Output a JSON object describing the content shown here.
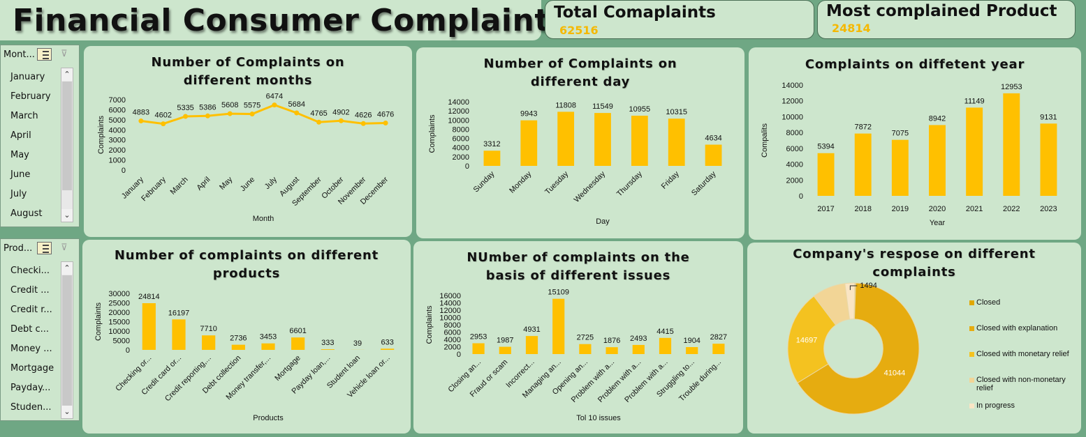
{
  "dashboard": {
    "title": "Financial Consumer Complaints",
    "kpi_total_label": "Total Comaplaints",
    "kpi_total_value": "62516",
    "kpi_product_label": "Most complained Product",
    "kpi_product_value": "24814"
  },
  "colors": {
    "background": "#6fa784",
    "panel": "#cde6cd",
    "bar": "#ffc000",
    "line": "#ffc000",
    "kpi_value": "#f5b800",
    "donut": [
      "#e0a800",
      "#e6ac10",
      "#f4c220",
      "#f2d596",
      "#fae5c4"
    ]
  },
  "slicers": {
    "month": {
      "header": "Mont...",
      "items": [
        "January",
        "February",
        "March",
        "April",
        "May",
        "June",
        "July",
        "August"
      ],
      "icons": [
        "multi-select-icon",
        "clear-filter-icon"
      ]
    },
    "product": {
      "header": "Prod...",
      "items": [
        "Checki...",
        "Credit ...",
        "Credit r...",
        "Debt c...",
        "Money ...",
        "Mortgage",
        "Payday...",
        "Studen..."
      ],
      "icons": [
        "multi-select-icon",
        "clear-filter-icon"
      ]
    }
  },
  "charts": {
    "months": {
      "title": "Number of Complaints on different months",
      "chart_data": {
        "type": "line",
        "title": "Number of Complaints on different months",
        "categories": [
          "January",
          "February",
          "March",
          "April",
          "May",
          "June",
          "July",
          "August",
          "September",
          "October",
          "November",
          "December"
        ],
        "values": [
          4883,
          4602,
          5335,
          5386,
          5608,
          5575,
          6474,
          5684,
          4765,
          4902,
          4626,
          4676
        ],
        "xlabel": "Month",
        "ylabel": "Complaints",
        "ylim": [
          0,
          7000
        ],
        "yticks": [
          "0",
          "1000",
          "2000",
          "3000",
          "4000",
          "5000",
          "6000",
          "7000"
        ],
        "grid": false
      }
    },
    "days": {
      "title": "Number of Complaints on different day",
      "chart_data": {
        "type": "bar",
        "title": "Number of Complaints on different day",
        "categories": [
          "Sunday",
          "Monday",
          "Tuesday",
          "Wednesday",
          "Thursday",
          "Friday",
          "Saturday"
        ],
        "values": [
          3312,
          9943,
          11808,
          11549,
          10955,
          10315,
          4634
        ],
        "xlabel": "Day",
        "ylabel": "Complaints",
        "ylim": [
          0,
          14000
        ],
        "yticks": [
          "0",
          "2000",
          "4000",
          "6000",
          "8000",
          "10000",
          "12000",
          "14000"
        ],
        "grid": false
      }
    },
    "years": {
      "title": "Complaints on diffetent year",
      "chart_data": {
        "type": "bar",
        "title": "Complaints on diffetent year",
        "categories": [
          "2017",
          "2018",
          "2019",
          "2020",
          "2021",
          "2022",
          "2023"
        ],
        "values": [
          5394,
          7872,
          7075,
          8942,
          11149,
          12953,
          9131
        ],
        "xlabel": "Year",
        "ylabel": "Compalits",
        "ylim": [
          0,
          14000
        ],
        "yticks": [
          "0",
          "2000",
          "4000",
          "6000",
          "8000",
          "10000",
          "12000",
          "14000"
        ],
        "grid": false
      }
    },
    "products": {
      "title": "Number of complaints on different products",
      "chart_data": {
        "type": "bar",
        "title": "Number of complaints on different products",
        "categories": [
          "Checking or...",
          "Credit card or...",
          "Credit reporting,...",
          "Debt collection",
          "Money transfer,...",
          "Mortgage",
          "Payday loan,...",
          "Student loan",
          "Vehicle loan or..."
        ],
        "values": [
          24814,
          16197,
          7710,
          2736,
          3453,
          6601,
          333,
          39,
          633
        ],
        "xlabel": "Products",
        "ylabel": "Complaints",
        "ylim": [
          0,
          30000
        ],
        "yticks": [
          "0",
          "5000",
          "10000",
          "15000",
          "20000",
          "25000",
          "30000"
        ],
        "grid": false
      }
    },
    "issues": {
      "title": "NUmber of complaints on the basis of different issues",
      "chart_data": {
        "type": "bar",
        "title": "NUmber of complaints on the basis of different issues",
        "categories": [
          "Closing an...",
          "Fraud or scam",
          "Incorrect...",
          "Managing an...",
          "Opening an...",
          "Problem with a...",
          "Problem with a...",
          "Problem with a...",
          "Struggling to...",
          "Trouble during..."
        ],
        "values": [
          2953,
          1987,
          4931,
          15109,
          2725,
          1876,
          2493,
          4415,
          1904,
          2827
        ],
        "xlabel": "Tol 10 issues",
        "ylabel": "Complaints",
        "ylim": [
          0,
          16000
        ],
        "yticks": [
          "0",
          "2000",
          "4000",
          "6000",
          "8000",
          "10000",
          "12000",
          "14000",
          "16000"
        ],
        "grid": false
      }
    },
    "response": {
      "title": "Company's respose on different complaints",
      "chart_data": {
        "type": "pie",
        "title": "Company's respose on different complaints",
        "categories": [
          "Closed",
          "Closed with explanation",
          "Closed with monetary relief",
          "Closed with non-monetary relief",
          "In progress"
        ],
        "values": [
          150,
          41044,
          14697,
          5131,
          1494
        ],
        "data_labels": [
          "",
          "41044",
          "14697",
          "",
          "1494"
        ],
        "legend": "right",
        "hole": 0.45
      }
    }
  }
}
